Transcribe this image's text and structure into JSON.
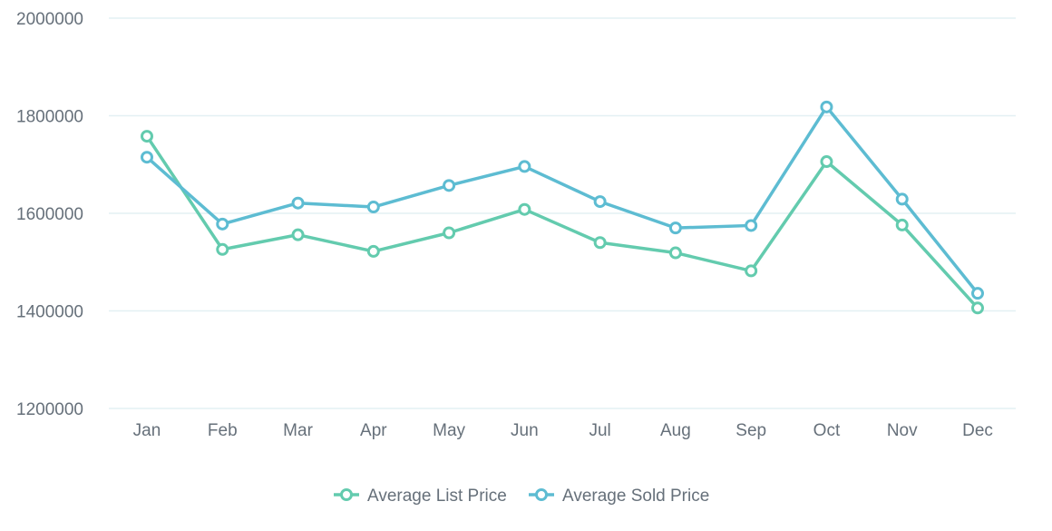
{
  "chart_data": {
    "type": "line",
    "title": "",
    "xlabel": "",
    "ylabel": "",
    "categories": [
      "Jan",
      "Feb",
      "Mar",
      "Apr",
      "May",
      "Jun",
      "Jul",
      "Aug",
      "Sep",
      "Oct",
      "Nov",
      "Dec"
    ],
    "ylim": [
      1200000,
      2000000
    ],
    "yticks": [
      "1200000",
      "1400000",
      "1600000",
      "1800000",
      "2000000"
    ],
    "grid": true,
    "legend_position": "bottom",
    "series": [
      {
        "name": "Average List Price",
        "color": "#63cbae",
        "values": [
          1758000,
          1526000,
          1556000,
          1522000,
          1560000,
          1608000,
          1540000,
          1519000,
          1482000,
          1706000,
          1576000,
          1406000
        ]
      },
      {
        "name": "Average Sold Price",
        "color": "#5dbcd2",
        "values": [
          1715000,
          1578000,
          1621000,
          1613000,
          1657000,
          1696000,
          1624000,
          1570000,
          1575000,
          1818000,
          1629000,
          1436000
        ]
      }
    ]
  }
}
